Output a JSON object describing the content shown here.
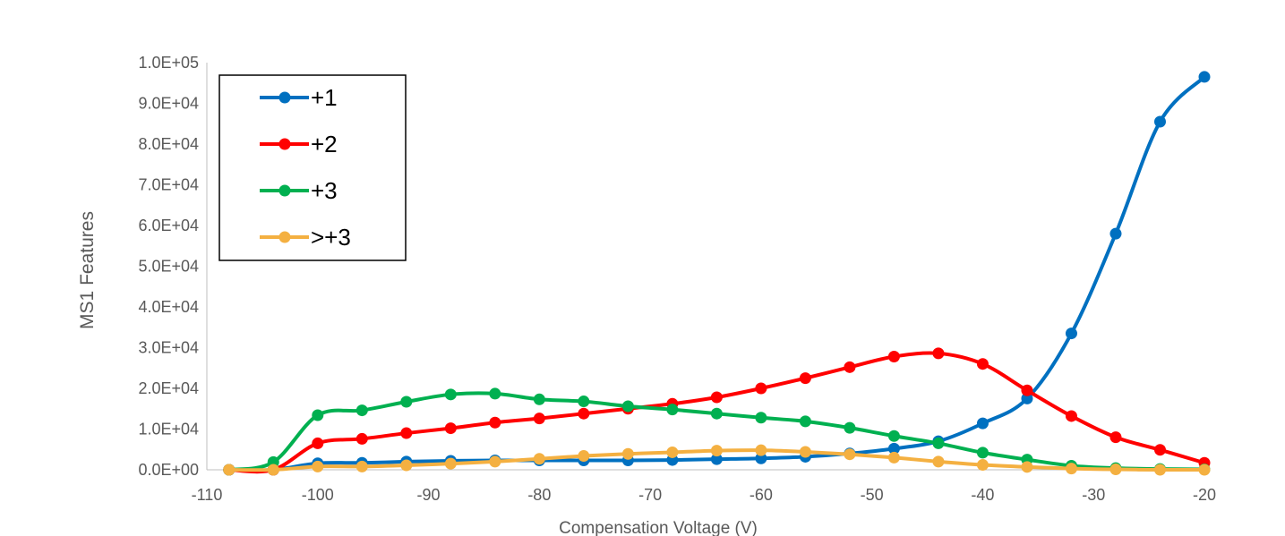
{
  "chart_data": {
    "type": "line",
    "xlabel": "Compensation Voltage (V)",
    "ylabel": "MS1 Features",
    "xlim": [
      -110,
      -20
    ],
    "ylim": [
      0,
      100000
    ],
    "x_ticks": [
      "-110",
      "-100",
      "-90",
      "-80",
      "-70",
      "-60",
      "-50",
      "-40",
      "-30",
      "-20"
    ],
    "y_ticks": [
      "0.0E+00",
      "1.0E+04",
      "2.0E+04",
      "3.0E+04",
      "4.0E+04",
      "5.0E+04",
      "6.0E+04",
      "7.0E+04",
      "8.0E+04",
      "9.0E+04",
      "1.0E+05"
    ],
    "grid": false,
    "legend_position": "top-left",
    "x": [
      -108,
      -104,
      -100,
      -96,
      -92,
      -88,
      -84,
      -80,
      -76,
      -72,
      -68,
      -64,
      -60,
      -56,
      -52,
      -48,
      -44,
      -40,
      -36,
      -32,
      -28,
      -24,
      -20
    ],
    "series": [
      {
        "name": "+1",
        "color": "#0070C0",
        "values": [
          0,
          0,
          1600,
          1700,
          2000,
          2200,
          2300,
          2300,
          2300,
          2300,
          2400,
          2600,
          2800,
          3200,
          4000,
          5200,
          7000,
          11400,
          17500,
          33500,
          58000,
          85500,
          96500
        ]
      },
      {
        "name": "+2",
        "color": "#FF0000",
        "values": [
          0,
          0,
          6500,
          7600,
          9000,
          10200,
          11600,
          12600,
          13800,
          15000,
          16200,
          17800,
          20000,
          22500,
          25200,
          27800,
          28600,
          26000,
          19500,
          13200,
          8000,
          4900,
          1700
        ]
      },
      {
        "name": "+3",
        "color": "#00B050",
        "values": [
          0,
          1900,
          13400,
          14600,
          16700,
          18500,
          18700,
          17300,
          16800,
          15600,
          14800,
          13800,
          12800,
          11900,
          10300,
          8300,
          6500,
          4200,
          2500,
          1000,
          400,
          200,
          100
        ]
      },
      {
        "name": ">+3",
        "color": "#F4B183",
        "values": [
          0,
          0,
          800,
          800,
          1100,
          1500,
          2000,
          2700,
          3400,
          3900,
          4300,
          4700,
          4800,
          4400,
          3800,
          3000,
          2000,
          1200,
          700,
          300,
          100,
          0,
          0
        ]
      }
    ]
  }
}
